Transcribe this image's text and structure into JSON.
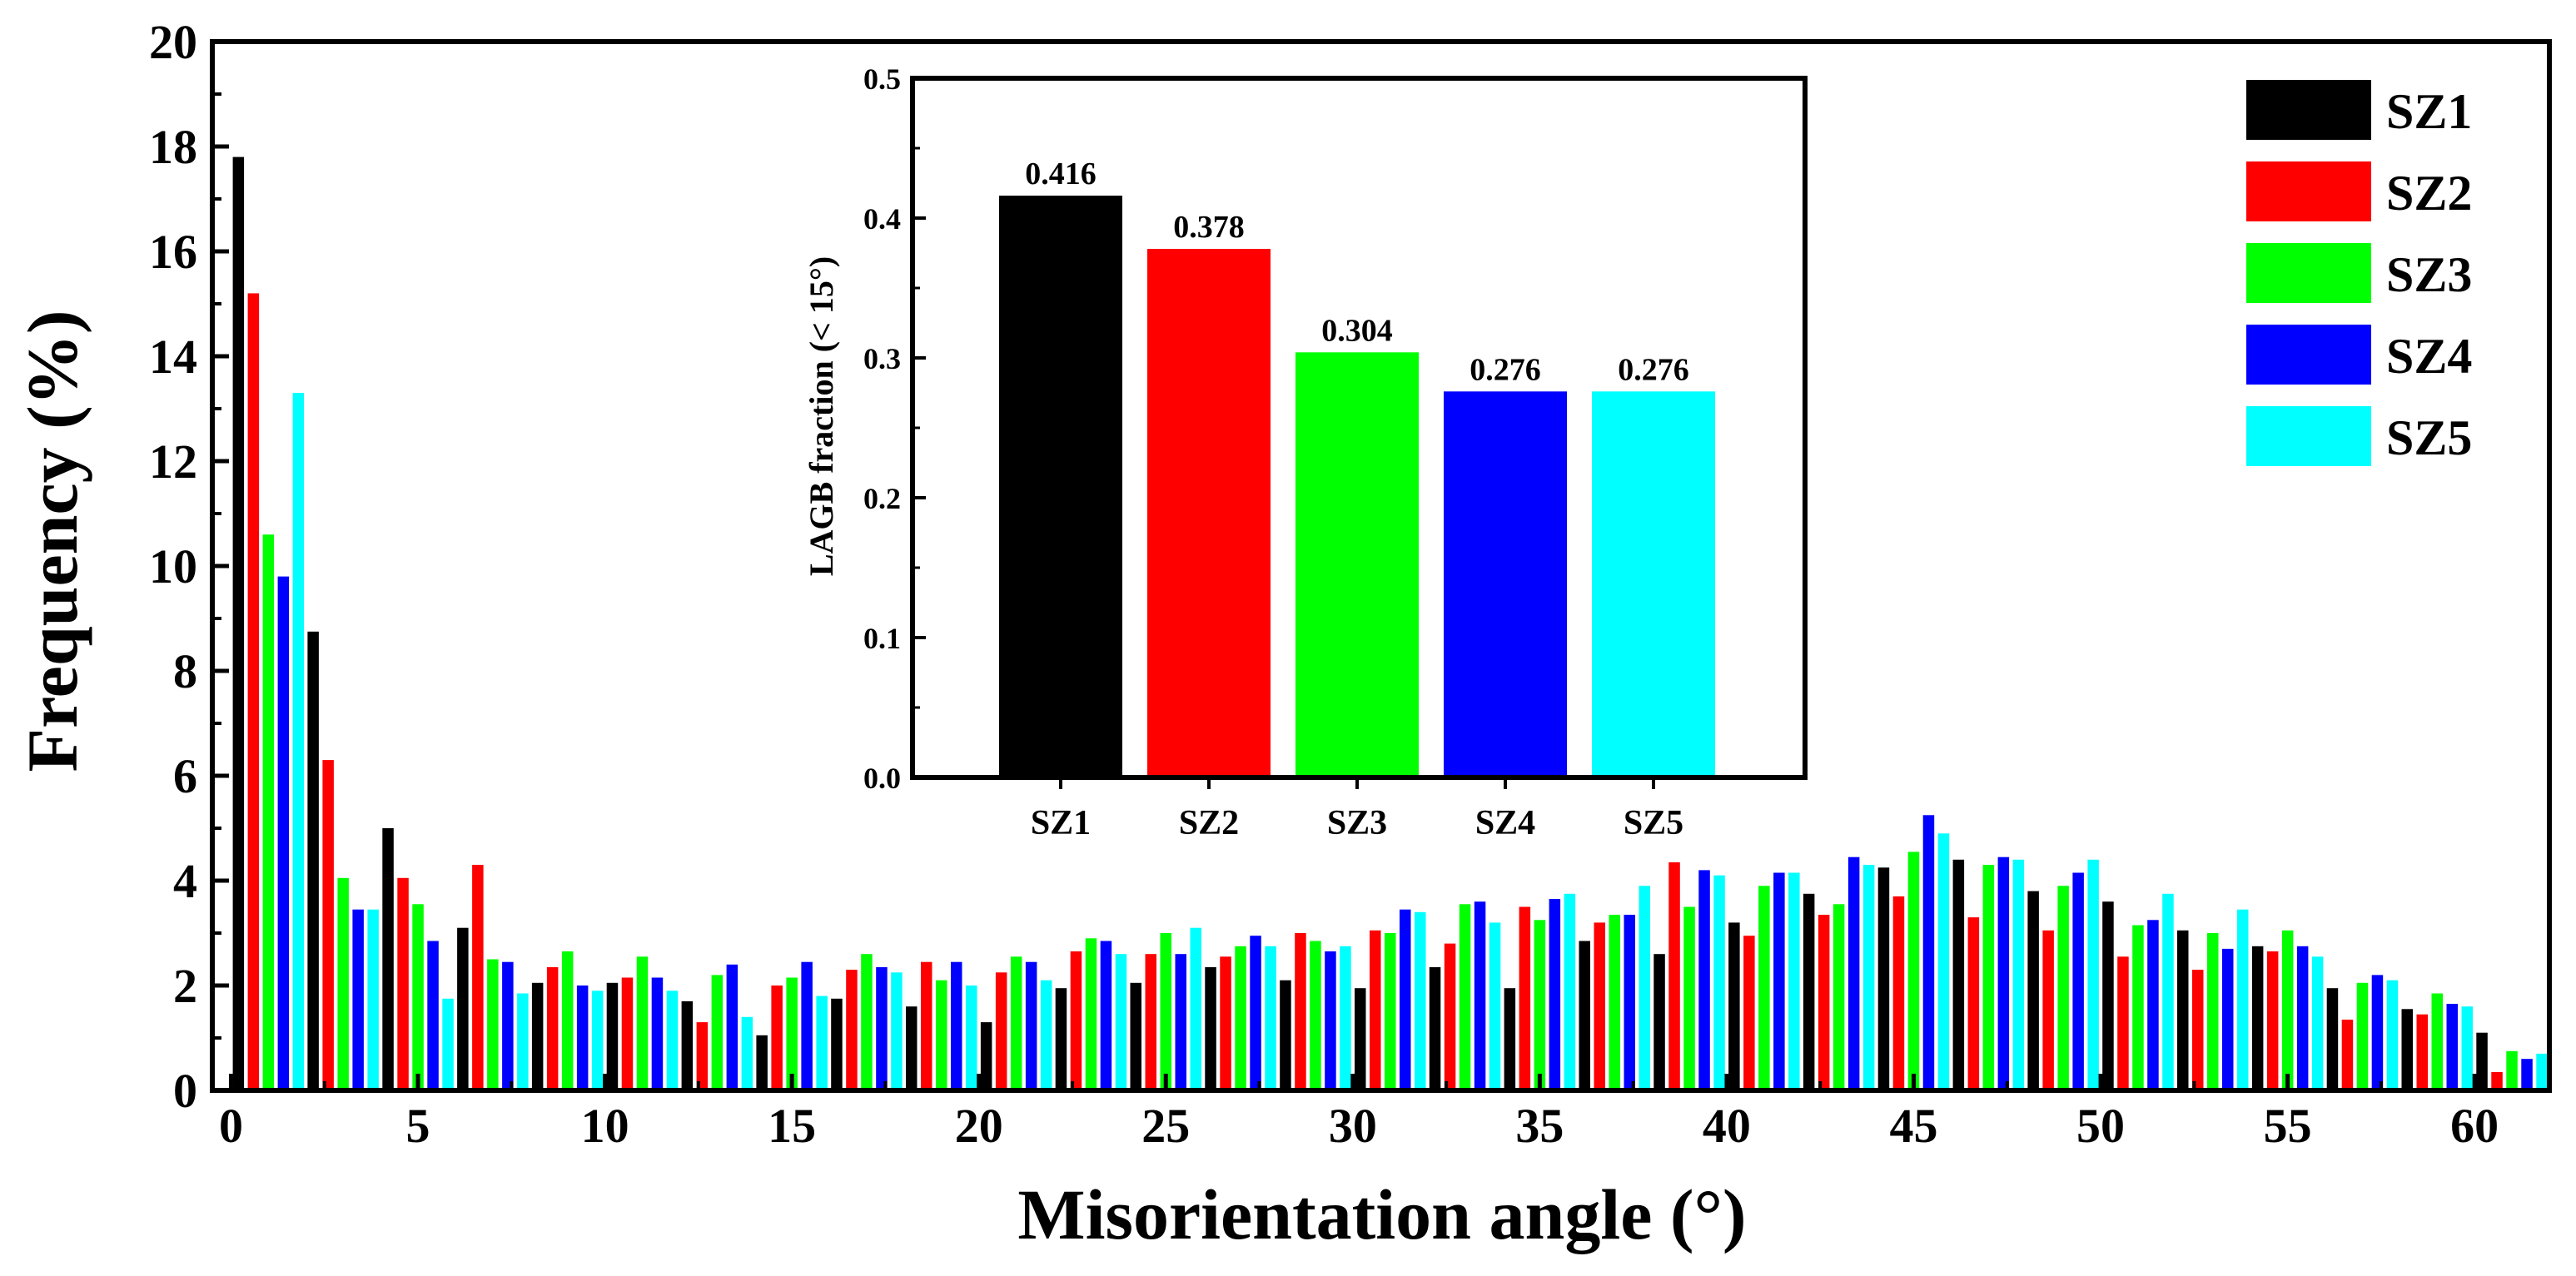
{
  "chart_data": [
    {
      "type": "bar",
      "xlabel": "Misorientation angle (°)",
      "ylabel": "Frequency (%)",
      "xlim": [
        -0.5,
        62
      ],
      "ylim": [
        0,
        20
      ],
      "bin_centers": [
        1,
        3,
        5,
        7,
        9,
        11,
        13,
        15,
        17,
        19,
        21,
        23,
        25,
        27,
        29,
        31,
        33,
        35,
        37,
        39,
        41,
        43,
        45,
        47,
        49,
        51,
        53,
        55,
        57,
        59,
        61
      ],
      "x_ticks": [
        "0",
        "5",
        "10",
        "15",
        "20",
        "25",
        "30",
        "35",
        "40",
        "45",
        "50",
        "55",
        "60"
      ],
      "y_ticks": [
        "0",
        "2",
        "4",
        "6",
        "8",
        "10",
        "12",
        "14",
        "16",
        "18",
        "20"
      ],
      "legend_position": "top-right",
      "series": [
        {
          "name": "SZ1",
          "color": "#000000",
          "values": [
            17.8,
            8.75,
            5.0,
            3.1,
            2.05,
            2.05,
            1.7,
            1.05,
            1.75,
            1.6,
            1.3,
            1.95,
            2.05,
            2.35,
            2.1,
            1.95,
            2.35,
            1.95,
            2.85,
            2.6,
            3.2,
            3.75,
            4.25,
            4.4,
            3.8,
            3.6,
            3.05,
            2.75,
            1.95,
            1.55,
            1.1
          ]
        },
        {
          "name": "SZ2",
          "color": "#ff0000",
          "values": [
            15.2,
            6.3,
            4.05,
            4.3,
            2.35,
            2.15,
            1.3,
            2.0,
            2.3,
            2.45,
            2.25,
            2.65,
            2.6,
            2.55,
            3.0,
            3.05,
            2.8,
            3.5,
            3.2,
            4.35,
            2.95,
            3.35,
            3.7,
            3.3,
            3.05,
            2.55,
            2.3,
            2.65,
            1.35,
            1.45,
            0.35
          ]
        },
        {
          "name": "SZ3",
          "color": "#00ff00",
          "values": [
            10.6,
            4.05,
            3.55,
            2.5,
            2.65,
            2.55,
            2.2,
            2.15,
            2.6,
            2.1,
            2.55,
            2.9,
            3.0,
            2.75,
            2.85,
            3.0,
            3.55,
            3.25,
            3.35,
            3.5,
            3.9,
            3.55,
            4.55,
            4.3,
            3.9,
            3.15,
            3.0,
            3.05,
            2.05,
            1.85,
            0.75
          ]
        },
        {
          "name": "SZ4",
          "color": "#0000ff",
          "values": [
            9.8,
            3.45,
            2.85,
            2.45,
            2.0,
            2.15,
            2.4,
            2.45,
            2.35,
            2.45,
            2.45,
            2.85,
            2.6,
            2.95,
            2.65,
            3.45,
            3.6,
            3.65,
            3.35,
            4.2,
            4.15,
            4.45,
            5.25,
            4.45,
            4.15,
            3.25,
            2.7,
            2.75,
            2.2,
            1.65,
            0.6
          ]
        },
        {
          "name": "SZ5",
          "color": "#00ffff",
          "values": [
            13.3,
            3.45,
            1.75,
            1.85,
            1.9,
            1.9,
            1.4,
            1.8,
            2.25,
            2.0,
            2.1,
            2.6,
            3.1,
            2.75,
            2.75,
            3.4,
            3.2,
            3.75,
            3.9,
            4.1,
            4.15,
            4.3,
            4.9,
            4.4,
            4.4,
            3.75,
            3.45,
            2.55,
            2.1,
            1.6,
            0.7
          ]
        }
      ]
    },
    {
      "type": "bar",
      "title": "",
      "xlabel": "",
      "ylabel": "LAGB fraction (< 15°)",
      "ylim": [
        0,
        0.5
      ],
      "y_ticks": [
        "0.0",
        "0.1",
        "0.2",
        "0.3",
        "0.4",
        "0.5"
      ],
      "categories": [
        "SZ1",
        "SZ2",
        "SZ3",
        "SZ4",
        "SZ5"
      ],
      "values": [
        0.416,
        0.378,
        0.304,
        0.276,
        0.276
      ],
      "value_labels": [
        "0.416",
        "0.378",
        "0.304",
        "0.276",
        "0.276"
      ],
      "colors": [
        "#000000",
        "#ff0000",
        "#00ff00",
        "#0000ff",
        "#00ffff"
      ]
    }
  ]
}
